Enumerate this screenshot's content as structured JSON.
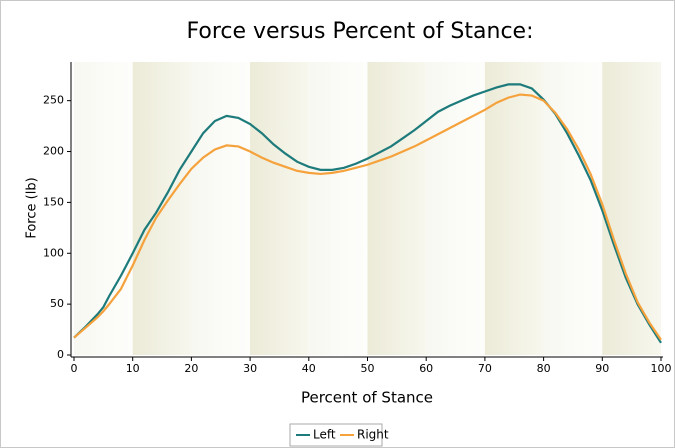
{
  "chart_data": {
    "type": "line",
    "title": "Force versus Percent of Stance:",
    "x_label": "Percent of Stance",
    "y_label": "Force (lb)",
    "x": [
      0,
      2,
      4,
      5,
      6,
      8,
      10,
      12,
      14,
      16,
      18,
      20,
      22,
      24,
      26,
      28,
      30,
      32,
      34,
      36,
      38,
      40,
      42,
      44,
      46,
      48,
      50,
      52,
      54,
      56,
      58,
      60,
      62,
      64,
      66,
      68,
      70,
      72,
      74,
      76,
      78,
      80,
      82,
      84,
      86,
      88,
      90,
      92,
      94,
      96,
      98,
      100
    ],
    "series": [
      {
        "name": "Left",
        "color": "#1e7b7b",
        "values": [
          17,
          28,
          40,
          47,
          58,
          78,
          100,
          123,
          140,
          160,
          182,
          200,
          218,
          230,
          235,
          233,
          227,
          218,
          207,
          198,
          190,
          185,
          182,
          182,
          184,
          188,
          193,
          199,
          205,
          213,
          221,
          230,
          239,
          245,
          250,
          255,
          259,
          263,
          266,
          266,
          262,
          251,
          237,
          218,
          196,
          172,
          142,
          108,
          76,
          50,
          30,
          12
        ]
      },
      {
        "name": "Right",
        "color": "#f5a23c",
        "values": [
          17,
          27,
          37,
          43,
          50,
          65,
          88,
          113,
          135,
          152,
          168,
          183,
          194,
          202,
          206,
          205,
          200,
          194,
          189,
          185,
          181,
          179,
          178,
          179,
          181,
          184,
          187,
          191,
          195,
          200,
          205,
          211,
          217,
          223,
          229,
          235,
          241,
          248,
          253,
          256,
          255,
          250,
          238,
          222,
          202,
          178,
          148,
          113,
          80,
          52,
          32,
          15
        ]
      }
    ],
    "xlim": [
      0,
      100
    ],
    "ylim": [
      0,
      288
    ],
    "xticks": [
      0,
      10,
      20,
      30,
      40,
      50,
      60,
      70,
      80,
      90,
      100
    ],
    "yticks": [
      0,
      50,
      100,
      150,
      200,
      250
    ]
  }
}
